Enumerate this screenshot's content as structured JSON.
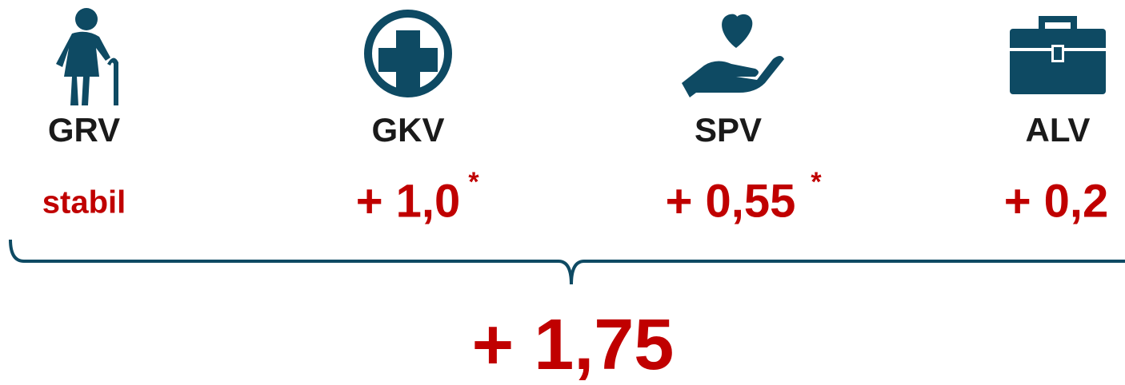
{
  "items": [
    {
      "label": "GRV",
      "value": "stabil"
    },
    {
      "label": "GKV",
      "value": "+ 1,0",
      "note": "*"
    },
    {
      "label": "SPV",
      "value": "+ 0,55",
      "note": "*"
    },
    {
      "label": "ALV",
      "value": "+ 0,2"
    }
  ],
  "total": "+ 1,75"
}
